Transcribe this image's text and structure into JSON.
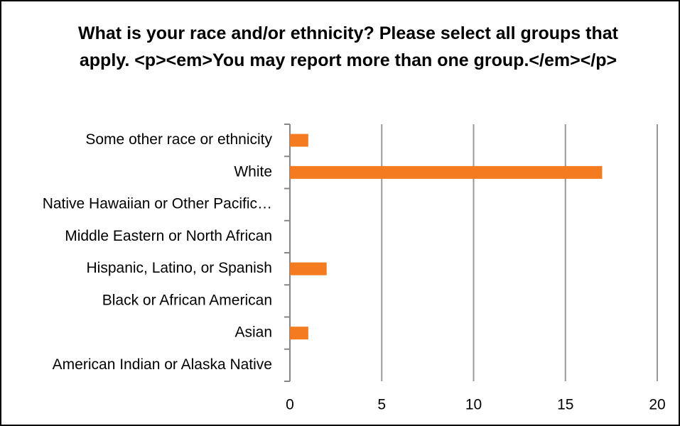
{
  "chart_data": {
    "type": "barh",
    "title": "What is your race and/or ethnicity? Please select all groups that apply. <p><em>You may report more than one group.</em></p>",
    "categories": [
      "American Indian or Alaska Native",
      "Asian",
      "Black or African American",
      "Hispanic, Latino, or Spanish",
      "Middle Eastern or North African",
      "Native Hawaiian or Other Pacific…",
      "White",
      "Some other race or ethnicity"
    ],
    "values": [
      0,
      1,
      0,
      2,
      0,
      0,
      17,
      1
    ],
    "color": "#f47b20",
    "xlim": [
      0,
      20
    ],
    "xticks": [
      0,
      5,
      10,
      15,
      20
    ],
    "grid": true
  }
}
